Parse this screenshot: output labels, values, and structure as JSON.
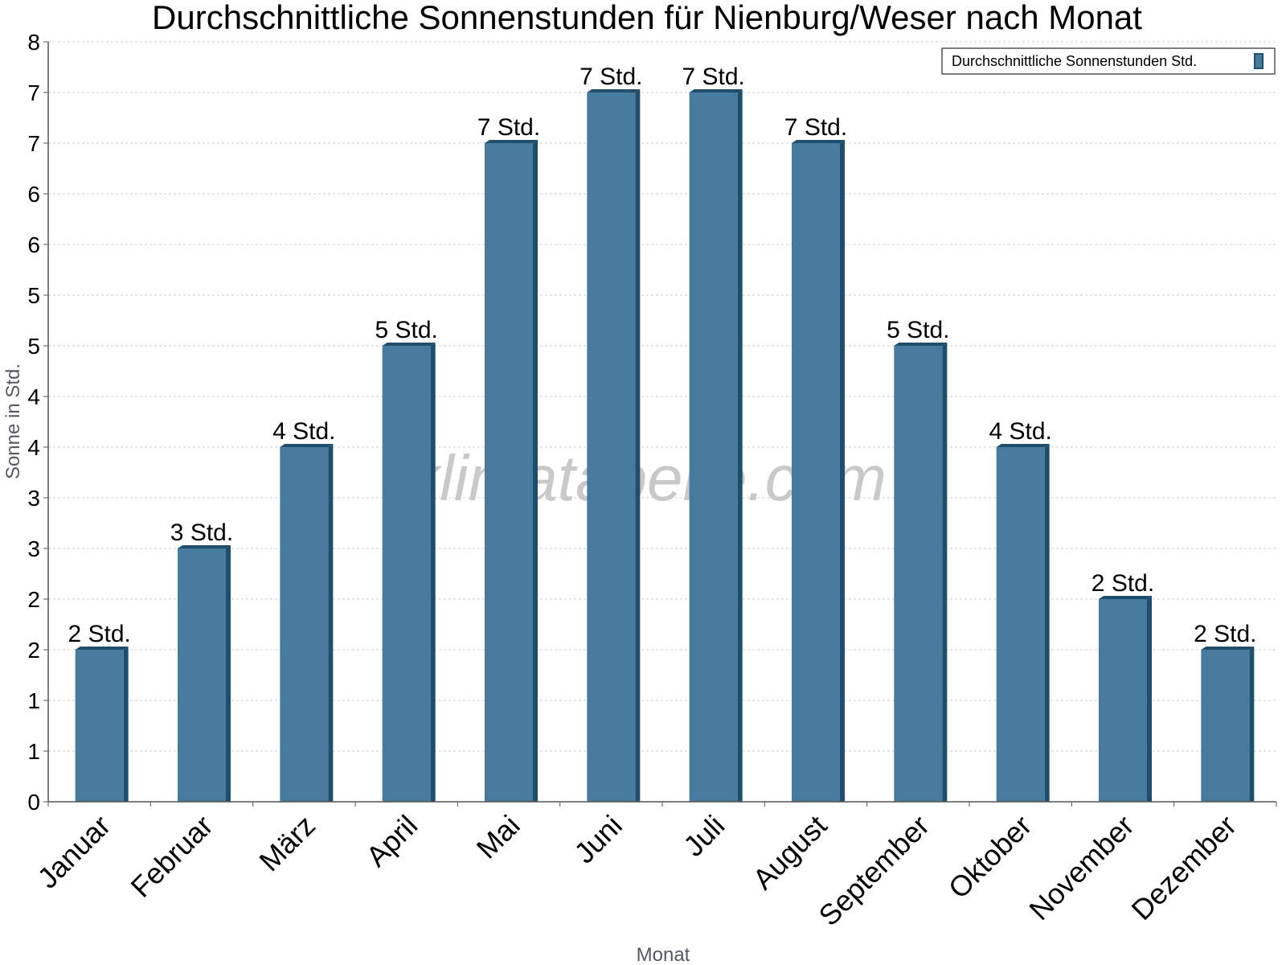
{
  "chart_data": {
    "type": "bar",
    "title": "Durchschnittliche Sonnenstunden für Nienburg/Weser nach Monat",
    "xlabel": "Monat",
    "ylabel": "Sonne in Std.",
    "categories": [
      "Januar",
      "Februar",
      "März",
      "April",
      "Mai",
      "Juni",
      "Juli",
      "August",
      "September",
      "Oktober",
      "November",
      "Dezember"
    ],
    "series": [
      {
        "name": "Durchschnittliche Sonnenstunden Std.",
        "values": [
          1.5,
          2.5,
          3.5,
          4.5,
          6.5,
          7,
          7,
          6.5,
          4.5,
          3.5,
          2,
          1.5
        ],
        "labels": [
          "2 Std.",
          "3 Std.",
          "4 Std.",
          "5 Std.",
          "7 Std.",
          "7 Std.",
          "7 Std.",
          "7 Std.",
          "5 Std.",
          "4 Std.",
          "2 Std.",
          "2 Std."
        ]
      }
    ],
    "ylim": [
      0,
      7.5
    ],
    "yticks": [
      {
        "value": 0,
        "label": "0"
      },
      {
        "value": 0.5,
        "label": "1"
      },
      {
        "value": 1,
        "label": "1"
      },
      {
        "value": 1.5,
        "label": "2"
      },
      {
        "value": 2,
        "label": "2"
      },
      {
        "value": 2.5,
        "label": "3"
      },
      {
        "value": 3,
        "label": "3"
      },
      {
        "value": 3.5,
        "label": "4"
      },
      {
        "value": 4,
        "label": "4"
      },
      {
        "value": 4.5,
        "label": "5"
      },
      {
        "value": 5,
        "label": "5"
      },
      {
        "value": 5.5,
        "label": "6"
      },
      {
        "value": 6,
        "label": "6"
      },
      {
        "value": 6.5,
        "label": "7"
      },
      {
        "value": 7,
        "label": "7"
      },
      {
        "value": 7.5,
        "label": "8"
      }
    ],
    "grid": true,
    "legend_position": "top-right",
    "colors": {
      "bar": "#467b9d",
      "bar_dark": "#1f4d6c",
      "grid": "#cccccc",
      "axis": "#555555"
    },
    "watermark": "klimatabelle.com"
  }
}
